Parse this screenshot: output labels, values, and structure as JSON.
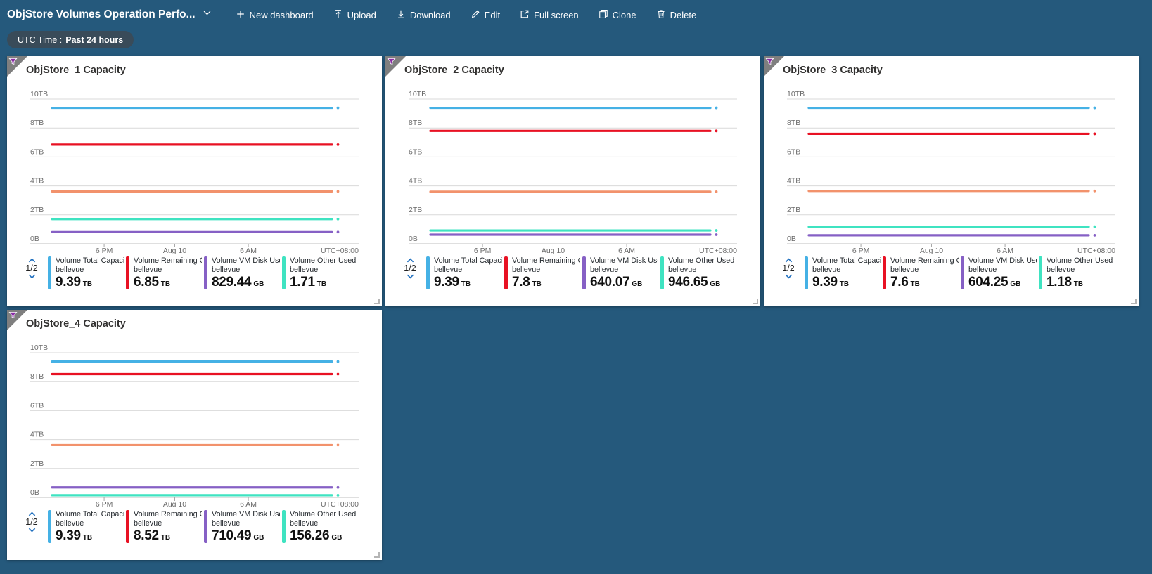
{
  "page_background": "#25597c",
  "toolbar": {
    "title": "ObjStore Volumes Operation Perfo...",
    "items": [
      {
        "name": "new-dashboard",
        "icon": "plus",
        "label": "New dashboard"
      },
      {
        "name": "upload",
        "icon": "upload",
        "label": "Upload"
      },
      {
        "name": "download",
        "icon": "download",
        "label": "Download"
      },
      {
        "name": "edit",
        "icon": "pencil",
        "label": "Edit"
      },
      {
        "name": "full-screen",
        "icon": "fullscreen",
        "label": "Full screen"
      },
      {
        "name": "clone",
        "icon": "clone",
        "label": "Clone"
      },
      {
        "name": "delete",
        "icon": "trash",
        "label": "Delete"
      }
    ]
  },
  "filter_pill": {
    "prefix": "UTC Time :",
    "value": "Past 24 hours"
  },
  "colors": {
    "blue": "#45b1e5",
    "red": "#e81123",
    "orange": "#f2926c",
    "teal": "#3fe3c1",
    "purple": "#8660c5",
    "grid": "#d9d9d9",
    "axis": "#bfbfbf",
    "accent_chevron": "#2170bf",
    "funnel": "#8a2da5",
    "corner_gray": "#7f7f7f"
  },
  "chart_data": [
    {
      "type": "line",
      "title": "ObjStore_1 Capacity",
      "y_ticks": [
        "10TB",
        "8TB",
        "6TB",
        "4TB",
        "2TB",
        "0B"
      ],
      "ylim_tb": [
        0,
        10
      ],
      "x_ticks": [
        "6 PM",
        "Aug 10",
        "6 AM"
      ],
      "tz_label": "UTC+08:00",
      "pagination": "1/2",
      "series": [
        {
          "name": "unlabeled-series",
          "color": "orange",
          "value_tb": 3.62
        },
        {
          "name": "Volume Other Used Capacity",
          "color": "teal",
          "value_tb": 1.71
        },
        {
          "name": "Volume VM Disk Used",
          "color": "purple",
          "value_tb": 0.81
        },
        {
          "name": "Volume Remaining Capacity",
          "color": "red",
          "value_tb": 6.85
        },
        {
          "name": "Volume Total Capacity",
          "color": "blue",
          "value_tb": 9.39
        }
      ],
      "legend": [
        {
          "label": "Volume Total Capacit...",
          "sub": "bellevue",
          "value": "9.39",
          "unit": "TB",
          "color": "blue"
        },
        {
          "label": "Volume Remaining Cap...",
          "sub": "bellevue",
          "value": "6.85",
          "unit": "TB",
          "color": "red"
        },
        {
          "label": "Volume VM Disk Used ...",
          "sub": "bellevue",
          "value": "829.44",
          "unit": "GB",
          "color": "purple"
        },
        {
          "label": "Volume Other Used Ca...",
          "sub": "bellevue",
          "value": "1.71",
          "unit": "TB",
          "color": "teal"
        }
      ]
    },
    {
      "type": "line",
      "title": "ObjStore_2 Capacity",
      "y_ticks": [
        "10TB",
        "8TB",
        "6TB",
        "4TB",
        "2TB",
        "0B"
      ],
      "ylim_tb": [
        0,
        10
      ],
      "x_ticks": [
        "6 PM",
        "Aug 10",
        "6 AM"
      ],
      "tz_label": "UTC+08:00",
      "pagination": "1/2",
      "series": [
        {
          "name": "unlabeled-series",
          "color": "orange",
          "value_tb": 3.6
        },
        {
          "name": "Volume Other Used Capacity",
          "color": "teal",
          "value_tb": 0.92
        },
        {
          "name": "Volume VM Disk Used",
          "color": "purple",
          "value_tb": 0.63
        },
        {
          "name": "Volume Remaining Capacity",
          "color": "red",
          "value_tb": 7.8
        },
        {
          "name": "Volume Total Capacity",
          "color": "blue",
          "value_tb": 9.39
        }
      ],
      "legend": [
        {
          "label": "Volume Total Capacit...",
          "sub": "bellevue",
          "value": "9.39",
          "unit": "TB",
          "color": "blue"
        },
        {
          "label": "Volume Remaining Cap...",
          "sub": "bellevue",
          "value": "7.8",
          "unit": "TB",
          "color": "red"
        },
        {
          "label": "Volume VM Disk Used ...",
          "sub": "bellevue",
          "value": "640.07",
          "unit": "GB",
          "color": "purple"
        },
        {
          "label": "Volume Other Used Ca...",
          "sub": "bellevue",
          "value": "946.65",
          "unit": "GB",
          "color": "teal"
        }
      ]
    },
    {
      "type": "line",
      "title": "ObjStore_3 Capacity",
      "y_ticks": [
        "10TB",
        "8TB",
        "6TB",
        "4TB",
        "2TB",
        "0B"
      ],
      "ylim_tb": [
        0,
        10
      ],
      "x_ticks": [
        "6 PM",
        "Aug 10",
        "6 AM"
      ],
      "tz_label": "UTC+08:00",
      "pagination": "1/2",
      "series": [
        {
          "name": "unlabeled-series",
          "color": "orange",
          "value_tb": 3.65
        },
        {
          "name": "Volume Other Used Capacity",
          "color": "teal",
          "value_tb": 1.18
        },
        {
          "name": "Volume VM Disk Used",
          "color": "purple",
          "value_tb": 0.59
        },
        {
          "name": "Volume Remaining Capacity",
          "color": "red",
          "value_tb": 7.6
        },
        {
          "name": "Volume Total Capacity",
          "color": "blue",
          "value_tb": 9.39
        }
      ],
      "legend": [
        {
          "label": "Volume Total Capacit...",
          "sub": "bellevue",
          "value": "9.39",
          "unit": "TB",
          "color": "blue"
        },
        {
          "label": "Volume Remaining Cap...",
          "sub": "bellevue",
          "value": "7.6",
          "unit": "TB",
          "color": "red"
        },
        {
          "label": "Volume VM Disk Used ...",
          "sub": "bellevue",
          "value": "604.25",
          "unit": "GB",
          "color": "purple"
        },
        {
          "label": "Volume Other Used Ca...",
          "sub": "bellevue",
          "value": "1.18",
          "unit": "TB",
          "color": "teal"
        }
      ]
    },
    {
      "type": "line",
      "title": "ObjStore_4 Capacity",
      "y_ticks": [
        "10TB",
        "8TB",
        "6TB",
        "4TB",
        "2TB",
        "0B"
      ],
      "ylim_tb": [
        0,
        10
      ],
      "x_ticks": [
        "6 PM",
        "Aug 10",
        "6 AM"
      ],
      "tz_label": "UTC+08:00",
      "pagination": "1/2",
      "series": [
        {
          "name": "unlabeled-series",
          "color": "orange",
          "value_tb": 3.62
        },
        {
          "name": "Volume Other Used Capacity",
          "color": "teal",
          "value_tb": 0.15
        },
        {
          "name": "Volume VM Disk Used",
          "color": "purple",
          "value_tb": 0.69
        },
        {
          "name": "Volume Remaining Capacity",
          "color": "red",
          "value_tb": 8.52
        },
        {
          "name": "Volume Total Capacity",
          "color": "blue",
          "value_tb": 9.39
        }
      ],
      "legend": [
        {
          "label": "Volume Total Capacit...",
          "sub": "bellevue",
          "value": "9.39",
          "unit": "TB",
          "color": "blue"
        },
        {
          "label": "Volume Remaining Cap...",
          "sub": "bellevue",
          "value": "8.52",
          "unit": "TB",
          "color": "red"
        },
        {
          "label": "Volume VM Disk Used ...",
          "sub": "bellevue",
          "value": "710.49",
          "unit": "GB",
          "color": "purple"
        },
        {
          "label": "Volume Other Used Ca...",
          "sub": "bellevue",
          "value": "156.26",
          "unit": "GB",
          "color": "teal"
        }
      ]
    }
  ]
}
